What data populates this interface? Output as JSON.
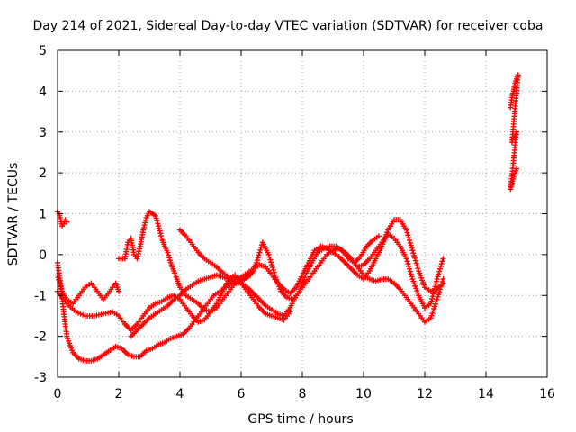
{
  "chart_data": {
    "type": "scatter",
    "title": "Day 214 of 2021, Sidereal Day-to-day VTEC variation (SDTVAR) for receiver coba",
    "xlabel": "GPS time / hours",
    "ylabel": "SDTVAR / TECUs",
    "xlim": [
      0,
      16
    ],
    "ylim": [
      -3,
      5
    ],
    "x_ticks": [
      "0",
      "2",
      "4",
      "6",
      "8",
      "10",
      "12",
      "14",
      "16"
    ],
    "y_ticks": [
      "-3",
      "-2",
      "-1",
      "0",
      "1",
      "2",
      "3",
      "4",
      "5"
    ],
    "grid": true,
    "marker": "+",
    "color": "#ff0000",
    "series": [
      {
        "x": [
          0.0,
          0.1,
          0.2,
          0.3,
          0.5,
          0.7,
          0.9,
          1.1,
          1.3,
          1.6,
          1.9,
          2.1,
          2.3,
          2.5,
          2.7,
          2.9,
          3.1,
          3.3,
          3.5,
          3.7,
          3.9,
          4.1,
          4.3,
          4.5,
          4.7,
          4.9,
          5.1,
          5.3,
          5.5,
          5.7,
          5.9,
          6.1,
          6.3,
          6.5,
          6.7,
          6.9,
          7.1,
          7.3,
          7.5,
          7.7,
          7.9,
          8.1,
          8.3,
          8.5,
          8.7,
          8.9,
          9.1,
          9.3,
          9.5,
          9.7,
          9.9,
          10.1,
          10.3,
          10.5
        ],
        "y": [
          -0.2,
          -0.7,
          -1.4,
          -2.0,
          -2.4,
          -2.55,
          -2.6,
          -2.6,
          -2.55,
          -2.4,
          -2.25,
          -2.3,
          -2.45,
          -2.5,
          -2.5,
          -2.35,
          -2.3,
          -2.2,
          -2.15,
          -2.05,
          -2.0,
          -1.95,
          -1.8,
          -1.6,
          -1.4,
          -1.2,
          -1.0,
          -0.9,
          -0.8,
          -0.7,
          -0.7,
          -0.6,
          -0.5,
          -0.2,
          0.3,
          0.0,
          -0.5,
          -0.9,
          -1.05,
          -1.1,
          -0.9,
          -0.5,
          -0.2,
          0.05,
          0.15,
          0.2,
          0.2,
          0.1,
          -0.1,
          -0.2,
          -0.05,
          0.2,
          0.35,
          0.45
        ]
      },
      {
        "x": [
          0.0,
          0.15,
          0.3,
          0.5,
          0.7,
          0.9,
          1.1,
          1.3,
          1.5,
          1.7,
          1.9,
          2.0
        ],
        "y": [
          -0.5,
          -0.9,
          -1.1,
          -1.2,
          -1.0,
          -0.8,
          -0.7,
          -0.9,
          -1.1,
          -0.9,
          -0.7,
          -0.9
        ]
      },
      {
        "x": [
          0.0,
          0.3,
          0.6,
          0.9,
          1.2,
          1.5,
          1.8,
          2.0,
          2.2,
          2.4,
          2.6,
          2.8,
          3.0,
          3.2,
          3.4,
          3.6,
          3.8,
          4.0,
          4.2,
          4.4,
          4.6,
          4.8,
          5.0,
          5.2,
          5.4,
          5.6,
          5.8,
          6.0,
          6.2,
          6.4,
          6.6,
          6.8,
          7.0,
          7.2,
          7.4,
          7.6
        ],
        "y": [
          -0.9,
          -1.2,
          -1.4,
          -1.5,
          -1.5,
          -1.45,
          -1.4,
          -1.5,
          -1.7,
          -1.85,
          -1.7,
          -1.5,
          -1.3,
          -1.2,
          -1.15,
          -1.05,
          -1.0,
          -1.1,
          -1.3,
          -1.5,
          -1.65,
          -1.6,
          -1.4,
          -1.2,
          -0.9,
          -0.6,
          -0.5,
          -0.7,
          -0.9,
          -1.1,
          -1.3,
          -1.45,
          -1.5,
          -1.55,
          -1.6,
          -1.4
        ]
      },
      {
        "x": [
          2.0,
          2.2,
          2.3,
          2.4,
          2.5,
          2.6,
          2.7,
          2.8,
          2.9,
          3.0,
          3.1,
          3.2,
          3.3,
          3.4,
          3.5,
          3.6,
          3.7,
          3.8,
          3.9,
          4.0,
          4.2,
          4.4,
          4.6,
          4.8,
          5.0,
          5.2,
          5.4,
          5.6,
          5.8,
          6.0,
          6.2,
          6.4
        ],
        "y": [
          -0.1,
          -0.1,
          0.3,
          0.4,
          0.0,
          -0.1,
          0.2,
          0.6,
          0.9,
          1.05,
          1.0,
          0.95,
          0.7,
          0.4,
          0.2,
          0.05,
          -0.2,
          -0.4,
          -0.6,
          -0.8,
          -1.0,
          -1.1,
          -1.2,
          -1.35,
          -1.4,
          -1.3,
          -1.1,
          -0.9,
          -0.7,
          -0.6,
          -0.55,
          -0.4
        ]
      },
      {
        "x": [
          2.4,
          2.6,
          2.8,
          3.0,
          3.2,
          3.4,
          3.6,
          3.8,
          4.0,
          4.2,
          4.4,
          4.6,
          4.8,
          5.0,
          5.2,
          5.4,
          5.6,
          5.8,
          6.0,
          6.2,
          6.4,
          6.6,
          6.8,
          7.0,
          7.2,
          7.4,
          7.6,
          7.8,
          8.0,
          8.2,
          8.4,
          8.6,
          8.8,
          9.0,
          9.2,
          9.4,
          9.6,
          9.8,
          10.0,
          10.2,
          10.4,
          10.6,
          10.8,
          11.0,
          11.2,
          11.4,
          11.6,
          11.8,
          12.0,
          12.2,
          12.4,
          12.6
        ],
        "y": [
          -2.0,
          -1.85,
          -1.7,
          -1.55,
          -1.45,
          -1.35,
          -1.25,
          -1.1,
          -1.0,
          -0.85,
          -0.75,
          -0.65,
          -0.6,
          -0.55,
          -0.5,
          -0.55,
          -0.6,
          -0.65,
          -0.7,
          -0.8,
          -0.95,
          -1.1,
          -1.25,
          -1.35,
          -1.45,
          -1.5,
          -1.3,
          -1.0,
          -0.8,
          -0.6,
          -0.4,
          -0.2,
          0.0,
          0.1,
          0.15,
          0.05,
          -0.1,
          -0.3,
          -0.5,
          -0.6,
          -0.65,
          -0.6,
          -0.6,
          -0.7,
          -0.85,
          -1.05,
          -1.25,
          -1.45,
          -1.65,
          -1.55,
          -1.1,
          -0.6
        ]
      },
      {
        "x": [
          4.0,
          4.2,
          4.4,
          4.6,
          4.8,
          5.0,
          5.2,
          5.4,
          5.6,
          5.8,
          6.0,
          6.2,
          6.4,
          6.6,
          6.8,
          7.0,
          7.2,
          7.4,
          7.6,
          7.8,
          8.0,
          8.2,
          8.4,
          8.6,
          8.8,
          9.0,
          9.2,
          9.4,
          9.6,
          9.8,
          10.0,
          10.2,
          10.4,
          10.6,
          10.8,
          11.0,
          11.2,
          11.4,
          11.6,
          11.8,
          12.0,
          12.2,
          12.4,
          12.6
        ],
        "y": [
          0.6,
          0.45,
          0.25,
          0.05,
          -0.1,
          -0.2,
          -0.3,
          -0.45,
          -0.55,
          -0.6,
          -0.55,
          -0.45,
          -0.35,
          -0.25,
          -0.3,
          -0.5,
          -0.7,
          -0.85,
          -0.95,
          -0.8,
          -0.5,
          -0.2,
          0.1,
          0.2,
          0.15,
          0.05,
          -0.05,
          -0.2,
          -0.35,
          -0.5,
          -0.6,
          -0.4,
          -0.1,
          0.2,
          0.6,
          0.85,
          0.85,
          0.6,
          0.1,
          -0.4,
          -0.8,
          -0.9,
          -0.85,
          -0.7
        ]
      },
      {
        "x": [
          9.6,
          9.8,
          10.0,
          10.2,
          10.4,
          10.6,
          10.8,
          11.0,
          11.2,
          11.4,
          11.6,
          11.8,
          12.0,
          12.2,
          12.4,
          12.6
        ],
        "y": [
          -0.1,
          -0.3,
          -0.25,
          -0.1,
          0.1,
          0.3,
          0.5,
          0.4,
          0.2,
          -0.1,
          -0.6,
          -1.0,
          -1.3,
          -1.2,
          -0.6,
          -0.1
        ]
      },
      {
        "x": [
          0.0,
          0.05,
          0.1,
          0.15,
          0.2,
          0.25,
          0.3
        ],
        "y": [
          1.05,
          1.0,
          0.85,
          0.7,
          0.75,
          0.85,
          0.8
        ]
      },
      {
        "x": [
          14.8,
          14.85,
          14.9,
          14.95,
          15.0,
          15.05,
          14.85,
          14.9,
          14.95,
          15.0,
          14.8,
          14.85,
          14.9,
          14.95,
          15.0
        ],
        "y": [
          3.6,
          3.85,
          4.0,
          4.2,
          4.3,
          4.4,
          2.75,
          2.85,
          2.9,
          3.0,
          1.6,
          1.75,
          1.9,
          2.0,
          2.1
        ]
      }
    ]
  }
}
